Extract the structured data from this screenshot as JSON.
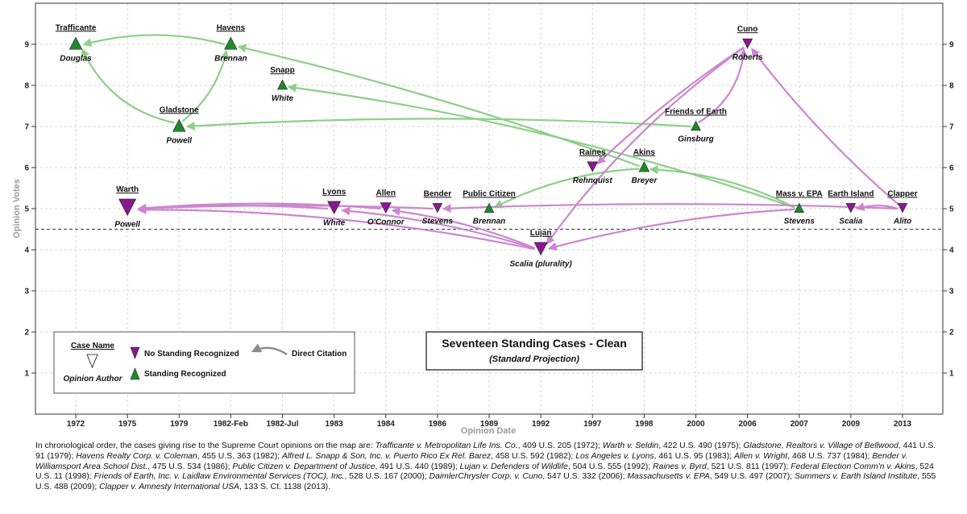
{
  "chart_data": {
    "type": "scatter",
    "title": "Seventeen Standing Cases - Clean",
    "subtitle": "(Standard Projection)",
    "xlabel": "Opinion Date",
    "ylabel": "Opinion Votes",
    "categories": [
      "1972",
      "1975",
      "1979",
      "1982-Feb",
      "1982-Jul",
      "1983",
      "1984",
      "1986",
      "1989",
      "1992",
      "1997",
      "1998",
      "2000",
      "2006",
      "2007",
      "2009",
      "2013"
    ],
    "ylim": [
      0,
      10
    ],
    "yticks": [
      "1",
      "2",
      "3",
      "4",
      "5",
      "6",
      "7",
      "8",
      "9"
    ],
    "threshold": 4.5,
    "grid": true,
    "points": [
      {
        "id": "trafficante",
        "case": "Trafficante",
        "author": "Douglas",
        "date": "1972",
        "votes": 9,
        "standing": true,
        "weight": 0.5
      },
      {
        "id": "warth",
        "case": "Warth",
        "author": "Powell",
        "date": "1975",
        "votes": 5,
        "standing": false,
        "weight": 1.0
      },
      {
        "id": "gladstone",
        "case": "Gladstone",
        "author": "Powell",
        "date": "1979",
        "votes": 7,
        "standing": true,
        "weight": 0.5
      },
      {
        "id": "havens",
        "case": "Havens",
        "author": "Brennan",
        "date": "1982-Feb",
        "votes": 9,
        "standing": true,
        "weight": 0.5
      },
      {
        "id": "snapp",
        "case": "Snapp",
        "author": "White",
        "date": "1982-Jul",
        "votes": 8,
        "standing": true,
        "weight": 0.2
      },
      {
        "id": "lyons",
        "case": "Lyons",
        "author": "White",
        "date": "1983",
        "votes": 5,
        "standing": false,
        "weight": 0.55
      },
      {
        "id": "allen",
        "case": "Allen",
        "author": "O'Connor",
        "date": "1984",
        "votes": 5,
        "standing": false,
        "weight": 0.3
      },
      {
        "id": "bender",
        "case": "Bender",
        "author": "Stevens",
        "date": "1986",
        "votes": 5,
        "standing": false,
        "weight": 0.15
      },
      {
        "id": "publiccitizen",
        "case": "Public Citizen",
        "author": "Brennan",
        "date": "1989",
        "votes": 5,
        "standing": true,
        "weight": 0.15
      },
      {
        "id": "lujan",
        "case": "Lujan",
        "author": "Scalia (plurality)",
        "date": "1992",
        "votes": 4,
        "standing": false,
        "weight": 0.55
      },
      {
        "id": "raines",
        "case": "Raines",
        "author": "Rehnquist",
        "date": "1997",
        "votes": 6,
        "standing": false,
        "weight": 0.25
      },
      {
        "id": "akins",
        "case": "Akins",
        "author": "Breyer",
        "date": "1998",
        "votes": 6,
        "standing": true,
        "weight": 0.25
      },
      {
        "id": "friendsofearth",
        "case": "Friends of Earth",
        "author": "Ginsburg",
        "date": "2000",
        "votes": 7,
        "standing": true,
        "weight": 0.15
      },
      {
        "id": "cuno",
        "case": "Cuno",
        "author": "Roberts",
        "date": "2006",
        "votes": 9,
        "standing": false,
        "weight": 0.2
      },
      {
        "id": "massepa",
        "case": "Mass v. EPA",
        "author": "Stevens",
        "date": "2007",
        "votes": 5,
        "standing": true,
        "weight": 0.15
      },
      {
        "id": "earthisland",
        "case": "Earth Island",
        "author": "Scalia",
        "date": "2009",
        "votes": 5,
        "standing": false,
        "weight": 0.15
      },
      {
        "id": "clapper",
        "case": "Clapper",
        "author": "Alito",
        "date": "2013",
        "votes": 5,
        "standing": false,
        "weight": 0.15
      }
    ],
    "citations": [
      {
        "from": "gladstone",
        "to": "trafficante",
        "bend": -0.22
      },
      {
        "from": "havens",
        "to": "trafficante",
        "bend": 0.12
      },
      {
        "from": "gladstone",
        "to": "havens",
        "bend": 0.15
      },
      {
        "from": "akins",
        "to": "havens",
        "bend": 0.03
      },
      {
        "from": "massepa",
        "to": "snapp",
        "bend": 0.05
      },
      {
        "from": "friendsofearth",
        "to": "gladstone",
        "bend": 0.03
      },
      {
        "from": "friendsofearth",
        "to": "cuno",
        "bend": 0.22
      },
      {
        "from": "akins",
        "to": "publiccitizen",
        "bend": 0.1
      },
      {
        "from": "massepa",
        "to": "akins",
        "bend": 0.1
      },
      {
        "from": "lyons",
        "to": "warth",
        "bend": 0.03
      },
      {
        "from": "allen",
        "to": "warth",
        "bend": 0.04
      },
      {
        "from": "bender",
        "to": "warth",
        "bend": 0.02
      },
      {
        "from": "lujan",
        "to": "warth",
        "bend": 0.05
      },
      {
        "from": "lujan",
        "to": "lyons",
        "bend": 0.05
      },
      {
        "from": "lujan",
        "to": "allen",
        "bend": 0.06
      },
      {
        "from": "clapper",
        "to": "bender",
        "bend": 0.02
      },
      {
        "from": "massepa",
        "to": "lujan",
        "bend": 0.05
      },
      {
        "from": "cuno",
        "to": "lujan",
        "bend": 0.08
      },
      {
        "from": "cuno",
        "to": "raines",
        "bend": 0.04
      },
      {
        "from": "clapper",
        "to": "cuno",
        "bend": -0.05
      },
      {
        "from": "clapper",
        "to": "earthisland",
        "bend": 0.12
      }
    ],
    "legend": {
      "case_name": "Case Name",
      "opinion_author": "Opinion Author",
      "no_standing": "No Standing Recognized",
      "standing": "Standing Recognized",
      "direct_citation": "Direct Citation",
      "placement": "bottom-left"
    },
    "colors": {
      "standing": "#1f8a2a",
      "no_standing": "#8a1890",
      "citation_standing": "#8ccf88",
      "citation_no_standing": "#cc86cf",
      "threshold": "#333333",
      "grid": "#d6d6d6"
    }
  },
  "caption": {
    "intro": "In chronological order, the cases giving rise to the Supreme Court opinions on the map are:",
    "cases": [
      {
        "name": "Trafficante v. Metropolitan Life Ins. Co.",
        "cite": ", 409 U.S. 205 (1972);"
      },
      {
        "name": "Warth v. Seldin",
        "cite": ", 422 U.S. 490 (1975);"
      },
      {
        "name": "Gladstone, Realtors v. Village of Bellwood",
        "cite": ", 441 U.S. 91 (1979);"
      },
      {
        "name": "Havens Realty Corp. v. Coleman",
        "cite": ", 455 U.S. 363 (1982);"
      },
      {
        "name": "Alfred L. Snapp & Son, Inc. v. Puerto Rico Ex Rel. Barez",
        "cite": ", 458 U.S. 592 (1982);"
      },
      {
        "name": "Los Angeles v. Lyons",
        "cite": ", 461 U.S. 95 (1983);"
      },
      {
        "name": "Allen v. Wright",
        "cite": ", 468 U.S. 737 (1984);"
      },
      {
        "name": "Bender v. Williamsport Area School Dist.",
        "cite": ", 475 U.S. 534 (1986);"
      },
      {
        "name": "Public Citizen v. Department of Justice",
        "cite": ", 491 U.S. 440 (1989);"
      },
      {
        "name": "Lujan v. Defenders of Wildlife",
        "cite": ", 504 U.S. 555 (1992);"
      },
      {
        "name": "Raines v. Byrd",
        "cite": ", 521 U.S. 811 (1997);"
      },
      {
        "name": "Federal Election Comm'n v. Akins",
        "cite": ", 524 U.S. 11 (1998);"
      },
      {
        "name": "Friends of Earth, Inc. v. Laidlaw Environmental Services (TOC), Inc.",
        "cite": ", 528 U.S. 167 (2000);"
      },
      {
        "name": "DaimlerChrysler Corp. v. Cuno",
        "cite": ", 547 U.S. 332 (2006);"
      },
      {
        "name": "Massachusetts v. EPA",
        "cite": ", 549 U.S. 497 (2007);"
      },
      {
        "name": "Summers v. Earth Island Institute",
        "cite": ", 555 U.S. 488 (2009);"
      },
      {
        "name": "Clapper v. Amnesty International USA",
        "cite": ", 133 S. Ct. 1138 (2013)."
      }
    ]
  }
}
